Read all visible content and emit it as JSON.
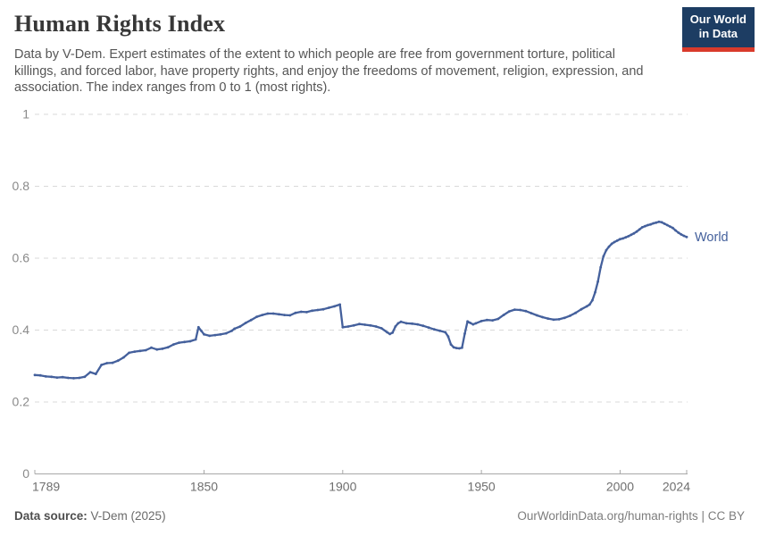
{
  "header": {
    "title": "Human Rights Index",
    "subtitle": "Data by V-Dem. Expert estimates of the extent to which people are free from government torture, political killings, and forced labor, have property rights, and enjoy the freedoms of movement, religion, expression, and association. The index ranges from 0 to 1 (most rights).",
    "logo": {
      "line1": "Our World",
      "line2": "in Data",
      "bg_color": "#1d3d63",
      "accent_color": "#d93a2b"
    }
  },
  "chart_data": {
    "type": "line",
    "title": "Human Rights Index",
    "xlabel": "",
    "ylabel": "",
    "x_domain": [
      1789,
      2024
    ],
    "y_domain": [
      0,
      1
    ],
    "x_ticks": [
      1789,
      1850,
      1900,
      1950,
      2000,
      2024
    ],
    "y_ticks": [
      0,
      0.2,
      0.4,
      0.6,
      0.8,
      1
    ],
    "grid": "horizontal-dashed",
    "legend": "end-of-line-label",
    "colors": {
      "line": "#44609c",
      "grid": "#d9d9d9",
      "axis": "#a8a8a8",
      "y_tick_label": "#8a8a8a",
      "x_tick_label": "#6f6f6f"
    },
    "series": [
      {
        "name": "World",
        "color": "#44609c",
        "points": [
          [
            1789,
            0.275
          ],
          [
            1791,
            0.274
          ],
          [
            1793,
            0.271
          ],
          [
            1795,
            0.27
          ],
          [
            1797,
            0.268
          ],
          [
            1799,
            0.269
          ],
          [
            1801,
            0.267
          ],
          [
            1803,
            0.266
          ],
          [
            1805,
            0.267
          ],
          [
            1807,
            0.27
          ],
          [
            1809,
            0.283
          ],
          [
            1811,
            0.278
          ],
          [
            1813,
            0.303
          ],
          [
            1815,
            0.308
          ],
          [
            1817,
            0.309
          ],
          [
            1819,
            0.315
          ],
          [
            1821,
            0.324
          ],
          [
            1823,
            0.337
          ],
          [
            1825,
            0.34
          ],
          [
            1827,
            0.342
          ],
          [
            1829,
            0.344
          ],
          [
            1831,
            0.351
          ],
          [
            1833,
            0.346
          ],
          [
            1835,
            0.348
          ],
          [
            1837,
            0.352
          ],
          [
            1839,
            0.36
          ],
          [
            1841,
            0.365
          ],
          [
            1843,
            0.367
          ],
          [
            1845,
            0.369
          ],
          [
            1847,
            0.374
          ],
          [
            1848,
            0.408
          ],
          [
            1849,
            0.398
          ],
          [
            1850,
            0.388
          ],
          [
            1852,
            0.384
          ],
          [
            1854,
            0.386
          ],
          [
            1856,
            0.388
          ],
          [
            1858,
            0.391
          ],
          [
            1860,
            0.398
          ],
          [
            1861,
            0.404
          ],
          [
            1863,
            0.41
          ],
          [
            1865,
            0.42
          ],
          [
            1867,
            0.428
          ],
          [
            1869,
            0.437
          ],
          [
            1871,
            0.442
          ],
          [
            1873,
            0.446
          ],
          [
            1875,
            0.446
          ],
          [
            1877,
            0.444
          ],
          [
            1879,
            0.442
          ],
          [
            1881,
            0.441
          ],
          [
            1883,
            0.448
          ],
          [
            1885,
            0.451
          ],
          [
            1887,
            0.45
          ],
          [
            1889,
            0.454
          ],
          [
            1891,
            0.456
          ],
          [
            1893,
            0.458
          ],
          [
            1895,
            0.462
          ],
          [
            1897,
            0.466
          ],
          [
            1899,
            0.471
          ],
          [
            1900,
            0.408
          ],
          [
            1902,
            0.41
          ],
          [
            1904,
            0.413
          ],
          [
            1906,
            0.417
          ],
          [
            1908,
            0.415
          ],
          [
            1910,
            0.413
          ],
          [
            1912,
            0.41
          ],
          [
            1914,
            0.405
          ],
          [
            1916,
            0.394
          ],
          [
            1917,
            0.389
          ],
          [
            1918,
            0.393
          ],
          [
            1919,
            0.41
          ],
          [
            1920,
            0.419
          ],
          [
            1921,
            0.423
          ],
          [
            1923,
            0.419
          ],
          [
            1925,
            0.418
          ],
          [
            1927,
            0.416
          ],
          [
            1929,
            0.412
          ],
          [
            1931,
            0.407
          ],
          [
            1933,
            0.402
          ],
          [
            1935,
            0.398
          ],
          [
            1937,
            0.394
          ],
          [
            1938,
            0.382
          ],
          [
            1939,
            0.36
          ],
          [
            1940,
            0.352
          ],
          [
            1941,
            0.35
          ],
          [
            1942,
            0.349
          ],
          [
            1943,
            0.351
          ],
          [
            1944,
            0.39
          ],
          [
            1945,
            0.424
          ],
          [
            1946,
            0.42
          ],
          [
            1947,
            0.416
          ],
          [
            1948,
            0.419
          ],
          [
            1950,
            0.425
          ],
          [
            1952,
            0.428
          ],
          [
            1954,
            0.427
          ],
          [
            1956,
            0.431
          ],
          [
            1958,
            0.442
          ],
          [
            1960,
            0.452
          ],
          [
            1962,
            0.457
          ],
          [
            1964,
            0.456
          ],
          [
            1966,
            0.453
          ],
          [
            1968,
            0.447
          ],
          [
            1970,
            0.441
          ],
          [
            1972,
            0.436
          ],
          [
            1974,
            0.432
          ],
          [
            1976,
            0.429
          ],
          [
            1978,
            0.43
          ],
          [
            1980,
            0.434
          ],
          [
            1982,
            0.44
          ],
          [
            1984,
            0.448
          ],
          [
            1986,
            0.458
          ],
          [
            1988,
            0.466
          ],
          [
            1989,
            0.471
          ],
          [
            1990,
            0.483
          ],
          [
            1991,
            0.505
          ],
          [
            1992,
            0.535
          ],
          [
            1993,
            0.575
          ],
          [
            1994,
            0.605
          ],
          [
            1995,
            0.622
          ],
          [
            1996,
            0.632
          ],
          [
            1997,
            0.64
          ],
          [
            1998,
            0.645
          ],
          [
            1999,
            0.649
          ],
          [
            2000,
            0.653
          ],
          [
            2001,
            0.655
          ],
          [
            2002,
            0.658
          ],
          [
            2003,
            0.661
          ],
          [
            2004,
            0.665
          ],
          [
            2005,
            0.669
          ],
          [
            2006,
            0.674
          ],
          [
            2007,
            0.68
          ],
          [
            2008,
            0.686
          ],
          [
            2009,
            0.689
          ],
          [
            2010,
            0.692
          ],
          [
            2011,
            0.694
          ],
          [
            2012,
            0.697
          ],
          [
            2013,
            0.699
          ],
          [
            2014,
            0.701
          ],
          [
            2015,
            0.7
          ],
          [
            2016,
            0.696
          ],
          [
            2017,
            0.692
          ],
          [
            2018,
            0.688
          ],
          [
            2019,
            0.684
          ],
          [
            2020,
            0.677
          ],
          [
            2021,
            0.671
          ],
          [
            2022,
            0.666
          ],
          [
            2023,
            0.662
          ],
          [
            2024,
            0.659
          ]
        ]
      }
    ]
  },
  "footer": {
    "source_label": "Data source:",
    "source_value": " V-Dem (2025)",
    "credit": "OurWorldinData.org/human-rights | CC BY"
  }
}
